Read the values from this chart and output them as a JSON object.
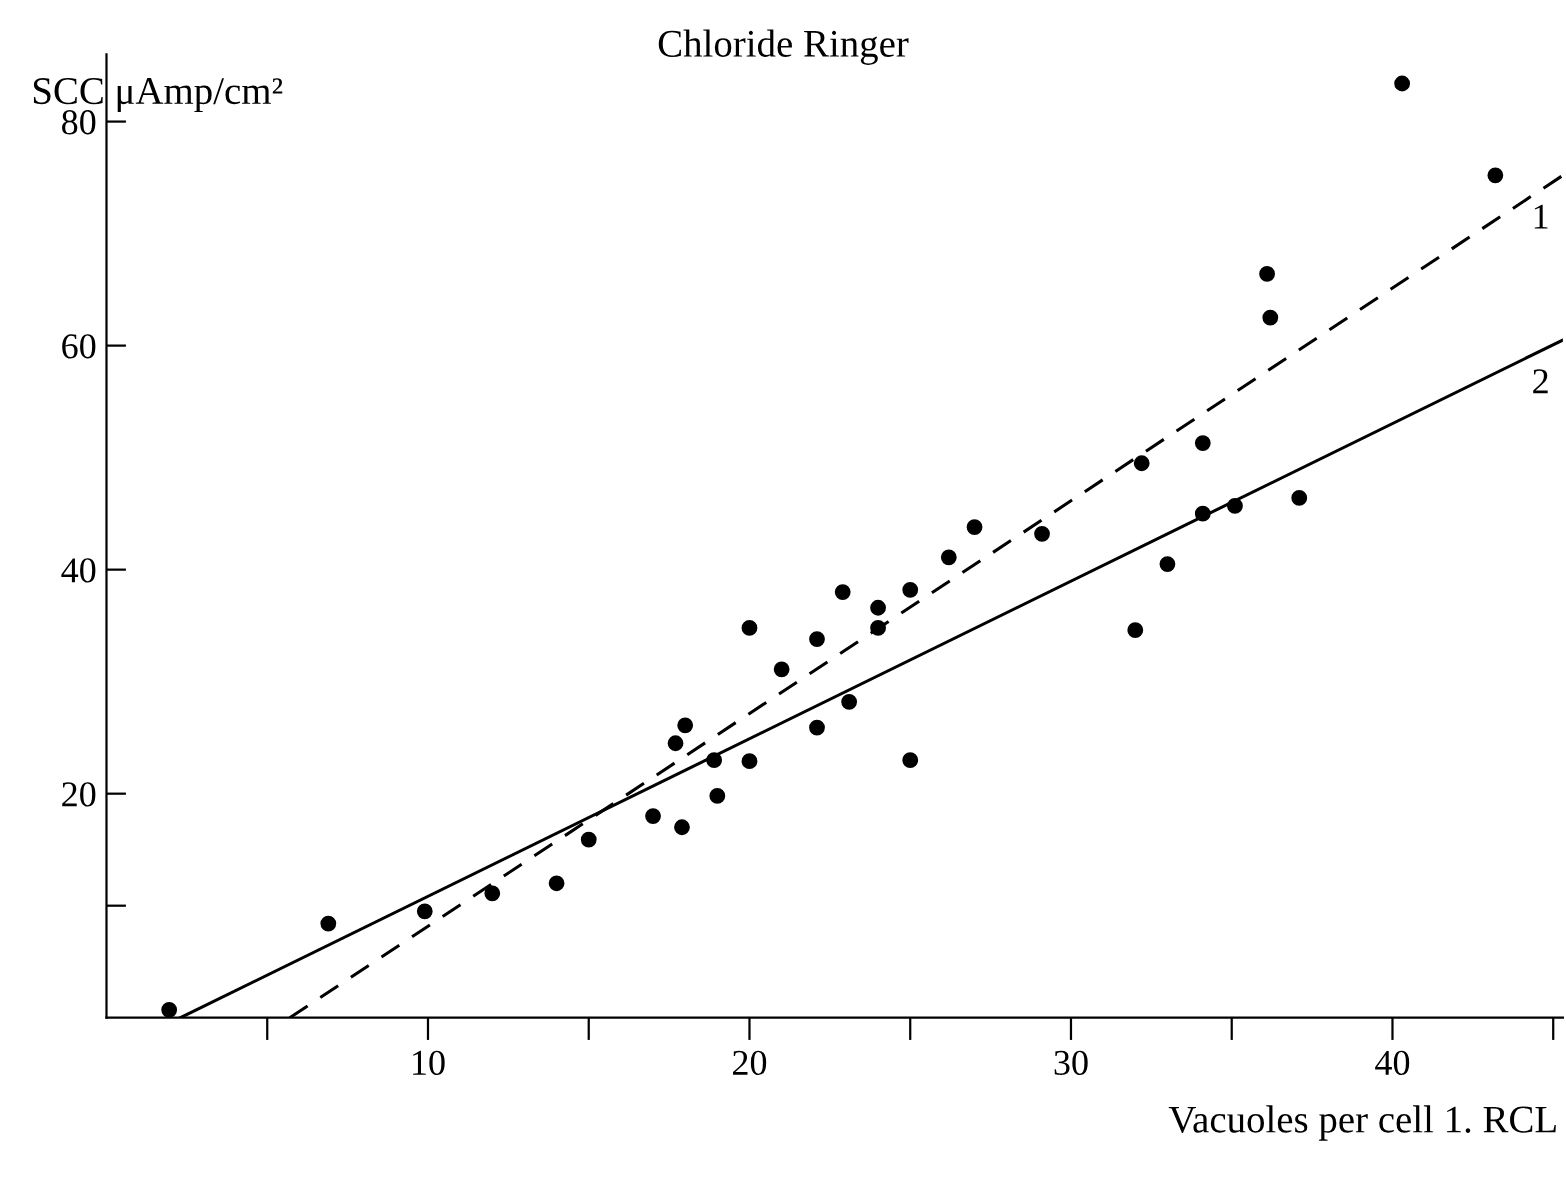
{
  "chart_data": {
    "type": "scatter",
    "title": "Chloride Ringer",
    "ylabel": "SCC μAmp/cm²",
    "xlabel": "Vacuoles per cell 1. RCL",
    "xlim": [
      0,
      45.3
    ],
    "ylim": [
      0,
      86
    ],
    "xticks": [
      {
        "value": 5,
        "label": null
      },
      10,
      {
        "value": 15,
        "label": null
      },
      20,
      {
        "value": 25,
        "label": null
      },
      30,
      {
        "value": 35,
        "label": null
      },
      40,
      {
        "value": 45,
        "label": null
      }
    ],
    "yticks": [
      {
        "value": 10,
        "label": null
      },
      20,
      40,
      60,
      80
    ],
    "grid": false,
    "legend": false,
    "marker": "circle",
    "series": [
      {
        "color": "#000000",
        "x": [
          1.95,
          6.9,
          9.9,
          12.0,
          14.0,
          15.0,
          17.0,
          17.9,
          17.7,
          18.0,
          18.9,
          19.0,
          20.0,
          20.0,
          21.0,
          22.1,
          22.1,
          23.1,
          24.0,
          22.9,
          24.0,
          25.0,
          25.0,
          26.2,
          27.0,
          29.1,
          32.0,
          32.2,
          33.0,
          34.1,
          34.1,
          35.1,
          37.1,
          36.1,
          36.2,
          40.3,
          43.2
        ],
        "values": [
          0.7,
          8.4,
          9.5,
          11.1,
          12.0,
          15.9,
          18.0,
          17.0,
          24.5,
          26.1,
          23.0,
          19.8,
          22.9,
          34.8,
          31.1,
          33.8,
          25.9,
          28.2,
          36.6,
          38.0,
          34.8,
          38.2,
          23.0,
          41.1,
          43.8,
          43.2,
          34.6,
          49.5,
          40.5,
          51.3,
          45.0,
          45.7,
          46.4,
          66.4,
          62.5,
          83.4,
          75.2
        ]
      },
      {
        "type": "line",
        "name": "1",
        "color": "#000000",
        "line_style": "dashed",
        "marker": "none",
        "x": [
          5.7,
          45.3
        ],
        "values": [
          0,
          75.2
        ]
      },
      {
        "type": "line",
        "name": "2",
        "color": "#000000",
        "line_style": "solid",
        "marker": "none",
        "x": [
          2.3,
          45.3
        ],
        "values": [
          0,
          60.5
        ]
      }
    ]
  }
}
